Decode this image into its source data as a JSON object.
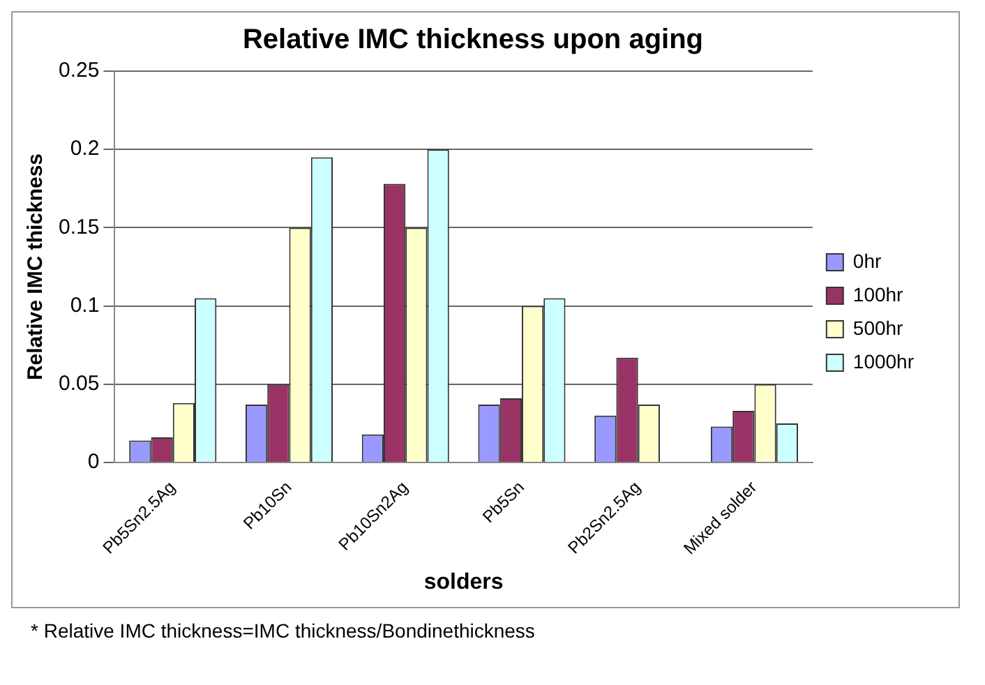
{
  "chart_data": {
    "type": "bar",
    "title": "Relative IMC thickness upon aging",
    "xlabel": "solders",
    "ylabel": "Relative IMC thickness",
    "categories": [
      "Pb5Sn2.5Ag",
      "Pb10Sn",
      "Pb10Sn2Ag",
      "Pb5Sn",
      "Pb2Sn2.5Ag",
      "Mixed solder"
    ],
    "series": [
      {
        "name": "0hr",
        "color": "#9999ff",
        "values": [
          0.014,
          0.037,
          0.018,
          0.037,
          0.03,
          0.023
        ]
      },
      {
        "name": "100hr",
        "color": "#993366",
        "values": [
          0.016,
          0.05,
          0.178,
          0.041,
          0.067,
          0.033
        ]
      },
      {
        "name": "500hr",
        "color": "#ffffcc",
        "values": [
          0.038,
          0.15,
          0.15,
          0.1,
          0.037,
          0.05
        ]
      },
      {
        "name": "1000hr",
        "color": "#ccffff",
        "values": [
          0.105,
          0.195,
          0.2,
          0.105,
          null,
          0.025
        ]
      }
    ],
    "ylim": [
      0,
      0.25
    ],
    "yticks": [
      0,
      0.05,
      0.1,
      0.15,
      0.2,
      0.25
    ],
    "grid": "y",
    "legend": "right",
    "annotations": [
      "* Relative IMC thickness=IMC thickness/Bondinethickness"
    ]
  }
}
